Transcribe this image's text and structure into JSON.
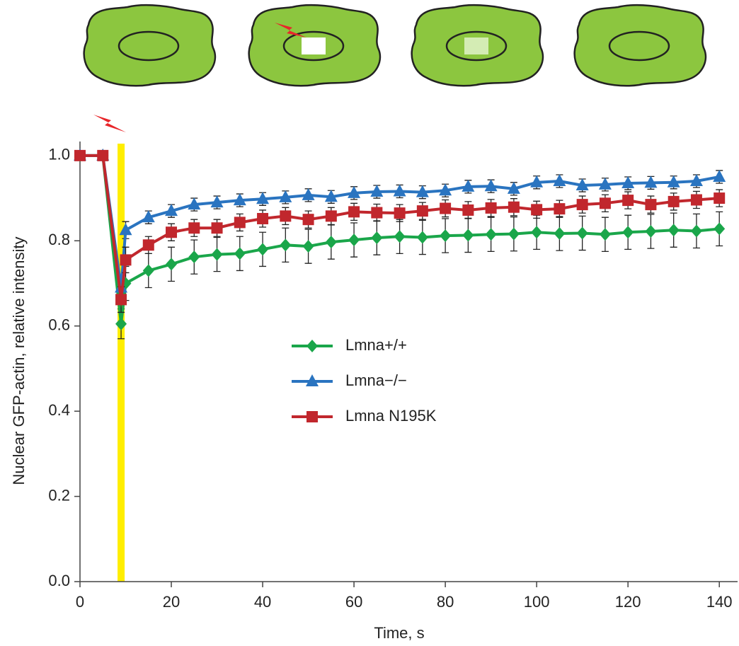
{
  "chart_data": {
    "type": "line",
    "xlabel": "Time, s",
    "ylabel": "Nuclear GFP-actin, relative intensity",
    "x": [
      0,
      5,
      9,
      10,
      15,
      20,
      25,
      30,
      35,
      40,
      45,
      50,
      55,
      60,
      65,
      70,
      75,
      80,
      85,
      90,
      95,
      100,
      105,
      110,
      115,
      120,
      125,
      130,
      135,
      140
    ],
    "bleach_time": 9,
    "series": [
      {
        "name": "Lmna+/+",
        "color": "#1aa64a",
        "marker": "diamond",
        "values": [
          1.0,
          1.0,
          0.605,
          0.7,
          0.73,
          0.745,
          0.762,
          0.768,
          0.77,
          0.78,
          0.79,
          0.787,
          0.797,
          0.802,
          0.807,
          0.81,
          0.808,
          0.812,
          0.813,
          0.815,
          0.816,
          0.82,
          0.817,
          0.818,
          0.815,
          0.82,
          0.822,
          0.825,
          0.823,
          0.828
        ],
        "errors": [
          0,
          0.01,
          0.035,
          0.04,
          0.04,
          0.04,
          0.04,
          0.04,
          0.04,
          0.04,
          0.04,
          0.04,
          0.04,
          0.04,
          0.04,
          0.04,
          0.04,
          0.04,
          0.04,
          0.04,
          0.04,
          0.04,
          0.04,
          0.04,
          0.04,
          0.04,
          0.04,
          0.04,
          0.04,
          0.04
        ]
      },
      {
        "name": "Lmna−/−",
        "color": "#2a74c0",
        "marker": "triangle",
        "values": [
          1.0,
          1.0,
          0.69,
          0.825,
          0.855,
          0.87,
          0.885,
          0.89,
          0.895,
          0.898,
          0.902,
          0.907,
          0.903,
          0.912,
          0.915,
          0.916,
          0.914,
          0.918,
          0.927,
          0.928,
          0.922,
          0.937,
          0.94,
          0.93,
          0.932,
          0.935,
          0.936,
          0.937,
          0.94,
          0.95
        ],
        "errors": [
          0,
          0.01,
          0.02,
          0.02,
          0.015,
          0.015,
          0.015,
          0.015,
          0.015,
          0.015,
          0.015,
          0.015,
          0.015,
          0.015,
          0.015,
          0.015,
          0.015,
          0.015,
          0.015,
          0.015,
          0.015,
          0.015,
          0.015,
          0.015,
          0.015,
          0.015,
          0.015,
          0.015,
          0.015,
          0.015
        ]
      },
      {
        "name": "Lmna N195K",
        "color": "#c1272d",
        "marker": "square",
        "values": [
          1.0,
          1.0,
          0.662,
          0.755,
          0.79,
          0.82,
          0.83,
          0.83,
          0.843,
          0.852,
          0.858,
          0.85,
          0.858,
          0.868,
          0.866,
          0.865,
          0.87,
          0.876,
          0.872,
          0.877,
          0.879,
          0.873,
          0.875,
          0.885,
          0.888,
          0.895,
          0.885,
          0.892,
          0.896,
          0.9
        ],
        "errors": [
          0,
          0.01,
          0.03,
          0.03,
          0.02,
          0.02,
          0.02,
          0.02,
          0.02,
          0.02,
          0.02,
          0.02,
          0.02,
          0.02,
          0.02,
          0.02,
          0.02,
          0.02,
          0.02,
          0.02,
          0.02,
          0.02,
          0.02,
          0.02,
          0.02,
          0.02,
          0.02,
          0.02,
          0.02,
          0.02
        ]
      }
    ],
    "xlim": [
      0,
      144
    ],
    "xticks": [
      0,
      20,
      40,
      60,
      80,
      100,
      120,
      140
    ],
    "ylim": [
      0,
      1.033
    ],
    "yticks": [
      {
        "value": 0,
        "label": "0.0"
      },
      {
        "value": 0.2,
        "label": "0.2"
      },
      {
        "value": 0.4,
        "label": "0.4"
      },
      {
        "value": 0.6,
        "label": "0.6"
      },
      {
        "value": 0.8,
        "label": "0.8"
      },
      {
        "value": 1.0,
        "label": "1.0"
      }
    ],
    "grid": false
  }
}
